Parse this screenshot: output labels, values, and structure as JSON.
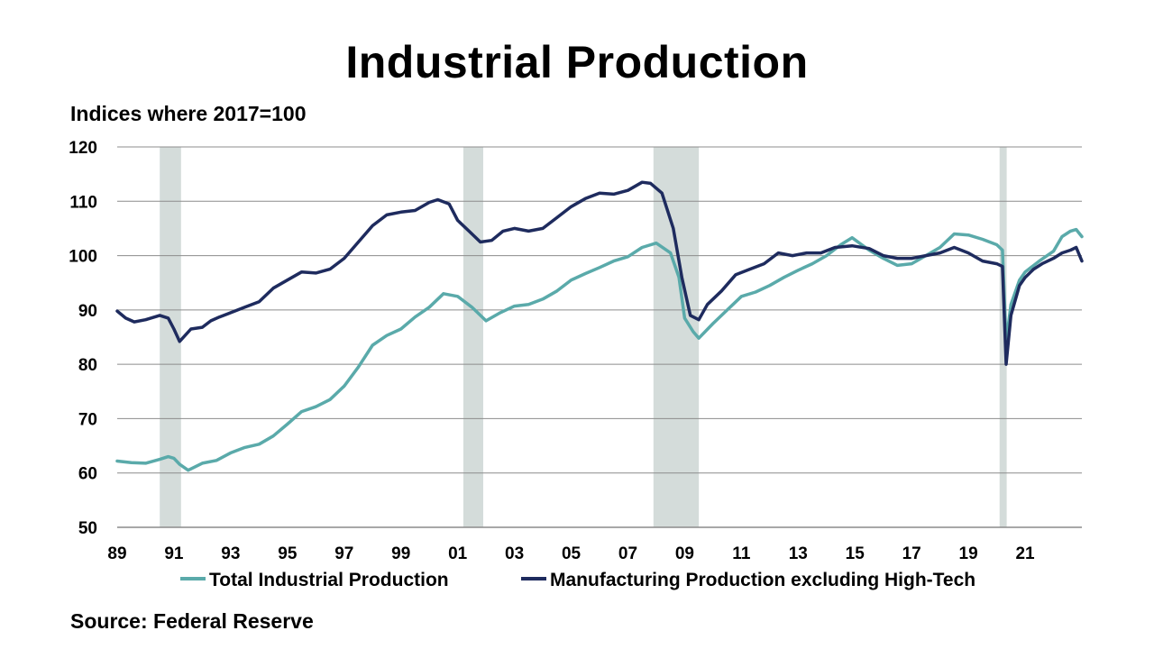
{
  "title": "Industrial Production",
  "subtitle": "Indices where 2017=100",
  "source": "Source: Federal Reserve",
  "colors": {
    "total": "#5AAAAA",
    "manufacturing": "#1E2B5E",
    "recession": "#D4DCDA",
    "grid": "#8C8C8C"
  },
  "chart_data": {
    "type": "line",
    "title": "Industrial Production",
    "ylabel": "Indices where 2017=100",
    "xlabel": "",
    "xlim": [
      1989.0,
      2023.0
    ],
    "ylim": [
      50,
      120
    ],
    "y_ticks": [
      50,
      60,
      70,
      80,
      90,
      100,
      110,
      120
    ],
    "x_ticks": [
      1989,
      1991,
      1993,
      1995,
      1997,
      1999,
      2001,
      2003,
      2005,
      2007,
      2009,
      2011,
      2013,
      2015,
      2017,
      2019,
      2021
    ],
    "x_tick_labels": [
      "89",
      "91",
      "93",
      "95",
      "97",
      "99",
      "01",
      "03",
      "05",
      "07",
      "09",
      "11",
      "13",
      "15",
      "17",
      "19",
      "21"
    ],
    "grid": true,
    "legend_position": "bottom",
    "recessions": [
      [
        1990.5,
        1991.25
      ],
      [
        2001.2,
        2001.9
      ],
      [
        2007.9,
        2009.5
      ],
      [
        2020.1,
        2020.35
      ]
    ],
    "series": [
      {
        "name": "Total Industrial Production",
        "color": "#5AAAAA",
        "x": [
          1989.0,
          1989.5,
          1990.0,
          1990.5,
          1990.8,
          1991.0,
          1991.2,
          1991.5,
          1992.0,
          1992.5,
          1993.0,
          1993.5,
          1994.0,
          1994.5,
          1995.0,
          1995.5,
          1996.0,
          1996.5,
          1997.0,
          1997.5,
          1998.0,
          1998.5,
          1999.0,
          1999.5,
          2000.0,
          2000.5,
          2001.0,
          2001.5,
          2002.0,
          2002.5,
          2003.0,
          2003.5,
          2004.0,
          2004.5,
          2005.0,
          2005.5,
          2006.0,
          2006.5,
          2007.0,
          2007.5,
          2008.0,
          2008.5,
          2008.8,
          2009.0,
          2009.3,
          2009.5,
          2010.0,
          2010.5,
          2011.0,
          2011.5,
          2012.0,
          2012.5,
          2013.0,
          2013.5,
          2014.0,
          2014.5,
          2014.9,
          2015.5,
          2016.0,
          2016.5,
          2017.0,
          2017.5,
          2018.0,
          2018.5,
          2019.0,
          2019.5,
          2020.0,
          2020.2,
          2020.33,
          2020.5,
          2020.8,
          2021.0,
          2021.5,
          2022.0,
          2022.3,
          2022.6,
          2022.8,
          2023.0
        ],
        "values": [
          62.2,
          61.9,
          61.8,
          62.5,
          63.0,
          62.7,
          61.6,
          60.5,
          61.8,
          62.3,
          63.7,
          64.7,
          65.3,
          66.8,
          69.0,
          71.3,
          72.2,
          73.5,
          76.0,
          79.5,
          83.5,
          85.3,
          86.5,
          88.7,
          90.5,
          93.0,
          92.5,
          90.5,
          88.0,
          89.5,
          90.7,
          91.0,
          92.0,
          93.5,
          95.5,
          96.7,
          97.8,
          99.0,
          99.8,
          101.5,
          102.3,
          100.5,
          96.0,
          88.5,
          86.0,
          84.8,
          87.5,
          90.0,
          92.5,
          93.3,
          94.5,
          96.0,
          97.3,
          98.5,
          100.0,
          102.0,
          103.3,
          101.0,
          99.5,
          98.2,
          98.5,
          100.0,
          101.5,
          104.0,
          103.8,
          103.0,
          102.0,
          101.0,
          84.0,
          91.0,
          95.5,
          97.0,
          99.0,
          100.8,
          103.5,
          104.5,
          104.8,
          103.5
        ]
      },
      {
        "name": "Manufacturing Production excluding High-Tech",
        "color": "#1E2B5E",
        "x": [
          1989.0,
          1989.3,
          1989.6,
          1990.0,
          1990.5,
          1990.8,
          1991.0,
          1991.2,
          1991.6,
          1992.0,
          1992.3,
          1992.6,
          1993.0,
          1993.5,
          1994.0,
          1994.5,
          1995.0,
          1995.5,
          1996.0,
          1996.5,
          1997.0,
          1997.5,
          1998.0,
          1998.5,
          1999.0,
          1999.5,
          2000.0,
          2000.3,
          2000.7,
          2001.0,
          2001.4,
          2001.8,
          2002.2,
          2002.6,
          2003.0,
          2003.5,
          2004.0,
          2004.5,
          2005.0,
          2005.5,
          2006.0,
          2006.5,
          2007.0,
          2007.5,
          2007.8,
          2008.2,
          2008.6,
          2008.9,
          2009.2,
          2009.5,
          2009.8,
          2010.3,
          2010.8,
          2011.3,
          2011.8,
          2012.3,
          2012.8,
          2013.3,
          2013.8,
          2014.3,
          2014.9,
          2015.5,
          2016.0,
          2016.5,
          2017.0,
          2017.5,
          2018.0,
          2018.5,
          2019.0,
          2019.5,
          2020.0,
          2020.2,
          2020.33,
          2020.5,
          2020.8,
          2021.0,
          2021.3,
          2021.6,
          2022.0,
          2022.3,
          2022.6,
          2022.8,
          2023.0
        ],
        "values": [
          89.8,
          88.5,
          87.8,
          88.2,
          89.0,
          88.5,
          86.5,
          84.2,
          86.5,
          86.8,
          88.0,
          88.7,
          89.5,
          90.5,
          91.5,
          94.0,
          95.5,
          97.0,
          96.8,
          97.5,
          99.5,
          102.5,
          105.5,
          107.5,
          108.0,
          108.3,
          109.8,
          110.3,
          109.5,
          106.5,
          104.5,
          102.5,
          102.8,
          104.5,
          105.0,
          104.5,
          105.0,
          107.0,
          109.0,
          110.5,
          111.5,
          111.3,
          112.0,
          113.5,
          113.3,
          111.5,
          105.0,
          96.0,
          89.0,
          88.2,
          91.0,
          93.5,
          96.5,
          97.5,
          98.5,
          100.5,
          100.0,
          100.5,
          100.5,
          101.5,
          101.8,
          101.3,
          100.0,
          99.5,
          99.5,
          100.0,
          100.5,
          101.5,
          100.5,
          99.0,
          98.5,
          98.0,
          80.0,
          89.0,
          94.5,
          96.0,
          97.5,
          98.5,
          99.5,
          100.5,
          101.0,
          101.5,
          99.0
        ]
      }
    ]
  }
}
